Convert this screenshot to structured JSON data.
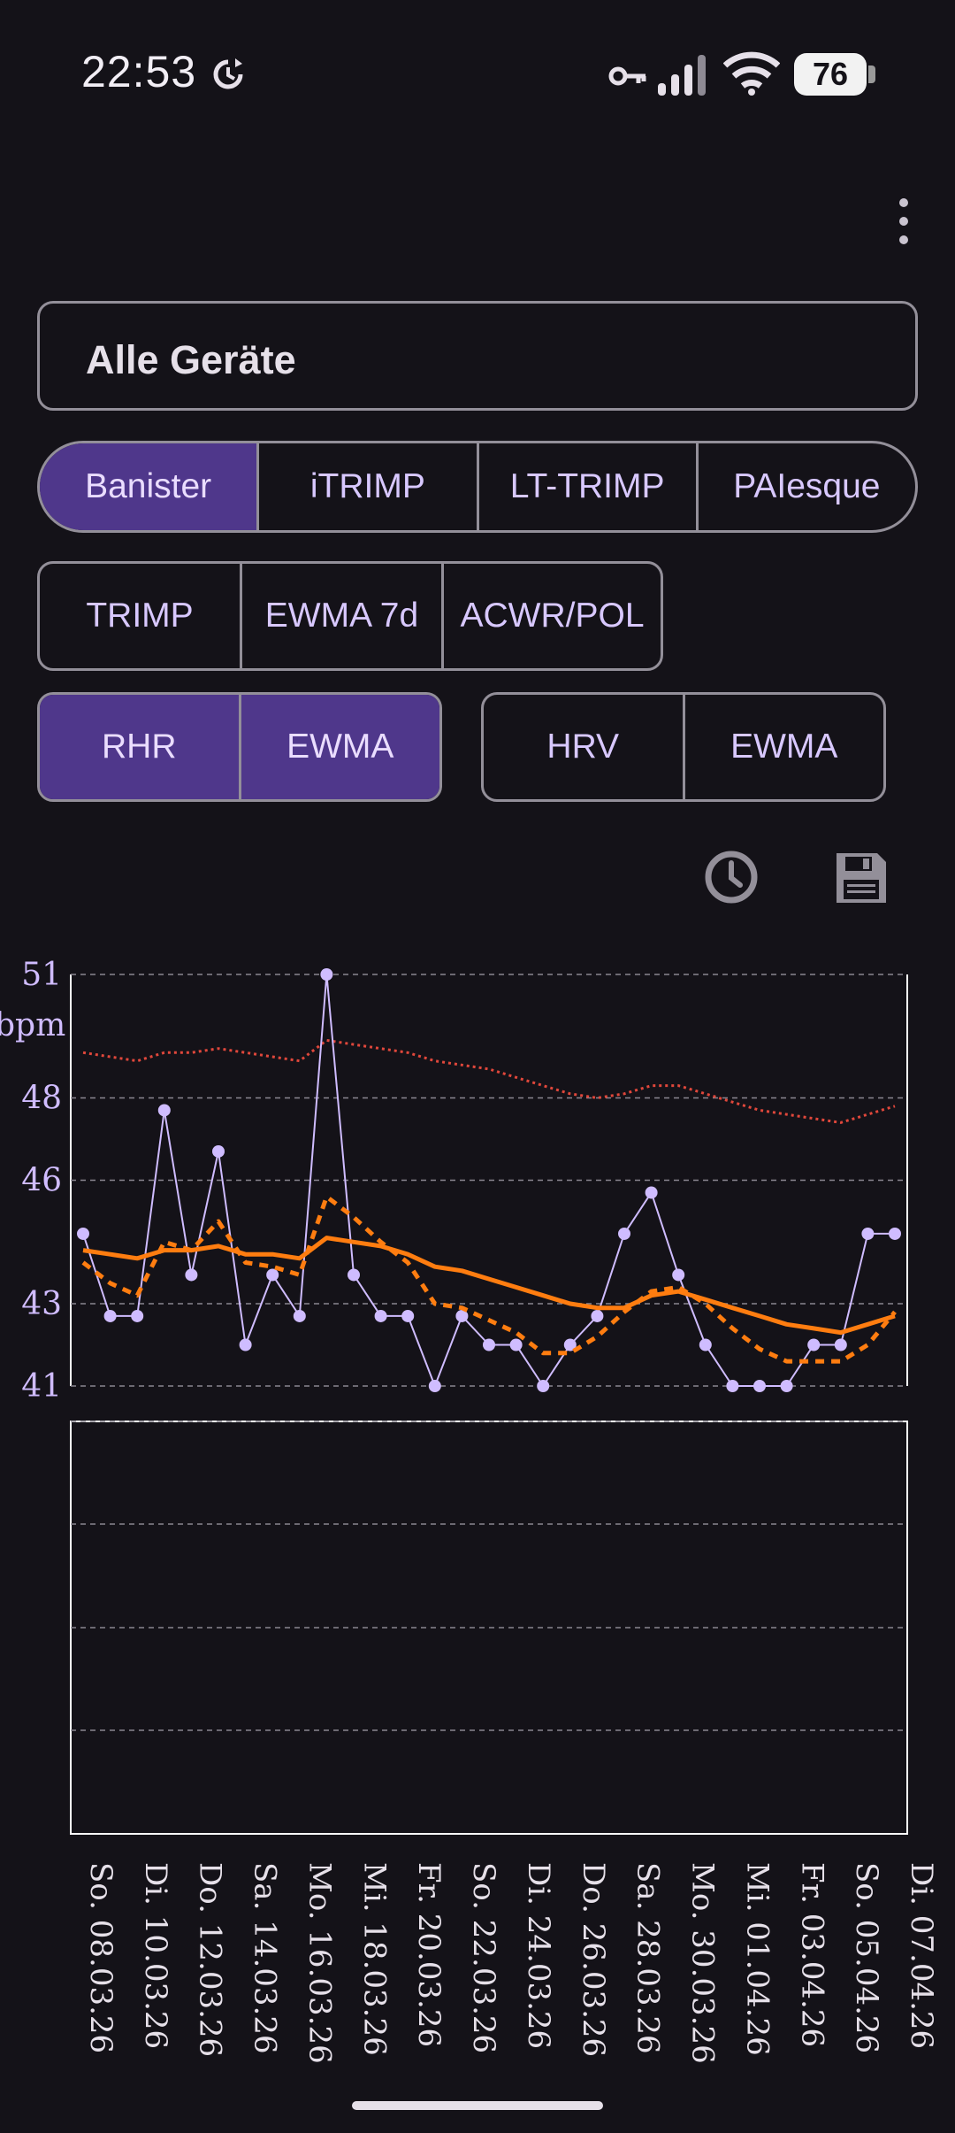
{
  "status_bar": {
    "time": "22:53",
    "battery": "76",
    "icons": [
      "sync-icon",
      "key-icon",
      "signal-icon",
      "wifi-icon",
      "battery-icon"
    ]
  },
  "toolbar": {
    "menu_icon": "more-vert-icon"
  },
  "device_selector": {
    "value": "Alle Geräte"
  },
  "model_buttons": [
    {
      "label": "Banister",
      "selected": true
    },
    {
      "label": "iTRIMP",
      "selected": false
    },
    {
      "label": "LT-TRIMP",
      "selected": false
    },
    {
      "label": "PAIesque",
      "selected": false
    }
  ],
  "load_buttons": [
    {
      "label": "TRIMP",
      "selected": false
    },
    {
      "label": "EWMA 7d",
      "selected": false
    },
    {
      "label": "ACWR/POL",
      "selected": false
    }
  ],
  "rhr_buttons": [
    {
      "label": "RHR",
      "selected": true
    },
    {
      "label": "EWMA",
      "selected": true
    }
  ],
  "hrv_buttons": [
    {
      "label": "HRV",
      "selected": false
    },
    {
      "label": "EWMA",
      "selected": false
    }
  ],
  "actions": {
    "history_icon": "history-icon",
    "save_icon": "save-icon"
  },
  "colors": {
    "accent": "#4f378b",
    "rhr_series": "#cfbcff",
    "ewma_series": "#ff7d10",
    "baseline_series": "#e0473b"
  },
  "chart_data": {
    "type": "line",
    "ylabel": "bpm",
    "yticks": [
      "51",
      "48",
      "46",
      "43",
      "41"
    ],
    "ylim": [
      41,
      51
    ],
    "x_labels": [
      "So. 08.03.26",
      "Di. 10.03.26",
      "Do. 12.03.26",
      "Sa. 14.03.26",
      "Mo. 16.03.26",
      "Mi. 18.03.26",
      "Fr. 20.03.26",
      "So. 22.03.26",
      "Di. 24.03.26",
      "Do. 26.03.26",
      "Sa. 28.03.26",
      "Mo. 30.03.26",
      "Mi. 01.04.26",
      "Fr. 03.04.26",
      "So. 05.04.26",
      "Di. 07.04.26"
    ],
    "x": [
      "08.03.26",
      "09.03.26",
      "10.03.26",
      "11.03.26",
      "12.03.26",
      "13.03.26",
      "14.03.26",
      "15.03.26",
      "16.03.26",
      "17.03.26",
      "18.03.26",
      "19.03.26",
      "20.03.26",
      "21.03.26",
      "22.03.26",
      "23.03.26",
      "24.03.26",
      "25.03.26",
      "26.03.26",
      "27.03.26",
      "28.03.26",
      "29.03.26",
      "30.03.26",
      "31.03.26",
      "01.04.26",
      "02.04.26",
      "03.04.26",
      "04.04.26",
      "05.04.26",
      "06.04.26",
      "07.04.26"
    ],
    "series": [
      {
        "style": "points-line",
        "values": [
          44.7,
          42.7,
          42.7,
          47.7,
          43.7,
          46.7,
          42.0,
          43.7,
          42.7,
          51.0,
          43.7,
          42.7,
          42.7,
          41.0,
          42.7,
          42.0,
          42.0,
          41.0,
          42.0,
          42.7,
          44.7,
          45.7,
          43.7,
          42.0,
          41.0,
          41.0,
          41.0,
          42.0,
          42.0,
          44.7,
          44.7
        ]
      },
      {
        "style": "solid",
        "values": [
          44.3,
          44.2,
          44.1,
          44.3,
          44.3,
          44.4,
          44.2,
          44.2,
          44.1,
          44.6,
          44.5,
          44.4,
          44.2,
          43.9,
          43.8,
          43.6,
          43.4,
          43.2,
          43.0,
          42.9,
          42.9,
          43.2,
          43.3,
          43.1,
          42.9,
          42.7,
          42.5,
          42.4,
          42.3,
          42.5,
          42.7
        ]
      },
      {
        "style": "dashed",
        "values": [
          44.0,
          43.5,
          43.2,
          44.5,
          44.3,
          45.0,
          44.0,
          43.9,
          43.7,
          45.6,
          45.1,
          44.5,
          44.0,
          43.0,
          42.9,
          42.6,
          42.3,
          41.8,
          41.8,
          42.2,
          42.8,
          43.3,
          43.4,
          43.0,
          42.4,
          41.9,
          41.6,
          41.6,
          41.6,
          42.0,
          42.8
        ]
      },
      {
        "style": "dotted",
        "values": [
          49.1,
          49.0,
          48.9,
          49.1,
          49.1,
          49.2,
          49.1,
          49.0,
          48.9,
          49.4,
          49.3,
          49.2,
          49.1,
          48.9,
          48.8,
          48.7,
          48.5,
          48.3,
          48.1,
          48.0,
          48.1,
          48.3,
          48.3,
          48.1,
          47.9,
          47.7,
          47.6,
          47.5,
          47.4,
          47.6,
          47.8
        ]
      }
    ],
    "grid": true,
    "lower_panel": {
      "type": "empty",
      "grid": true
    }
  }
}
